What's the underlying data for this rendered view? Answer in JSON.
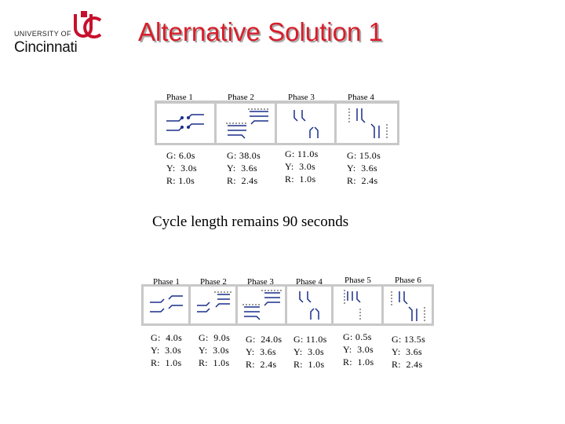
{
  "logo": {
    "university_text": "UNIVERSITY OF",
    "name_text": "Cincinnati",
    "brand_color": "#c8102e"
  },
  "title": "Alternative Solution 1",
  "title_color": "#d81e2a",
  "plan_a": {
    "phases": [
      {
        "label": "Phase 1",
        "timing": [
          "G: 6.0s",
          "Y:  3.0s",
          "R: 1.0s"
        ]
      },
      {
        "label": "Phase 2",
        "timing": [
          "G: 38.0s",
          "Y:  3.6s",
          "R:  2.4s"
        ]
      },
      {
        "label": "Phase 3",
        "timing": [
          "G: 11.0s",
          "Y:  3.0s",
          "R:  1.0s"
        ]
      },
      {
        "label": "Phase 4",
        "timing": [
          "G: 15.0s",
          "Y:  3.6s",
          "R:  2.4s"
        ]
      }
    ]
  },
  "cycle_note": "Cycle length remains 90 seconds",
  "plan_b": {
    "phases": [
      {
        "label": "Phase 1",
        "timing": [
          "G:  4.0s",
          "Y:  3.0s",
          "R:  1.0s"
        ]
      },
      {
        "label": "Phase 2",
        "timing": [
          "G:  9.0s",
          "Y:  3.0s",
          "R:  1.0s"
        ]
      },
      {
        "label": "Phase 3",
        "timing": [
          "G:  24.0s",
          "Y:  3.6s",
          "R:  2.4s"
        ]
      },
      {
        "label": "Phase 4",
        "timing": [
          "G: 11.0s",
          "Y:  3.0s",
          "R:  1.0s"
        ]
      },
      {
        "label": "Phase 5",
        "timing": [
          "G: 0.5s",
          "Y:  3.0s",
          "R:  1.0s"
        ]
      },
      {
        "label": "Phase 6",
        "timing": [
          "G: 13.5s",
          "Y:  3.6s",
          "R:  2.4s"
        ]
      }
    ]
  }
}
